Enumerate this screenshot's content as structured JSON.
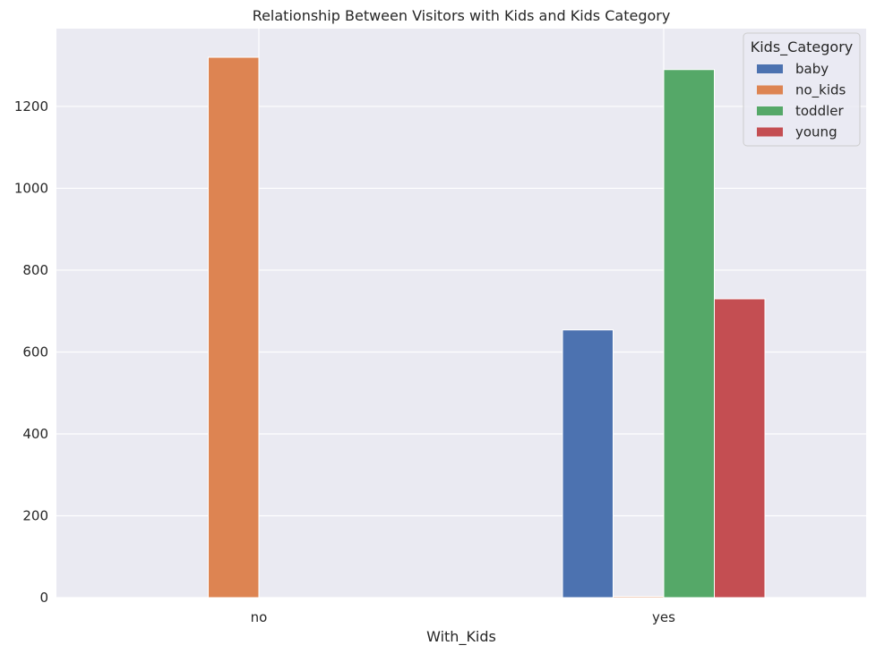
{
  "chart_data": {
    "type": "bar",
    "title": "Relationship Between Visitors with Kids and Kids Category",
    "xlabel": "With_Kids",
    "ylabel": "",
    "categories": [
      "no",
      "yes"
    ],
    "ylim": [
      0,
      1390
    ],
    "yticks": [
      0,
      200,
      400,
      600,
      800,
      1000,
      1200
    ],
    "grid": true,
    "legend": {
      "title": "Kids_Category",
      "placement": "top-right"
    },
    "series": [
      {
        "name": "baby",
        "color": "#4c72b0",
        "values": [
          0,
          654
        ]
      },
      {
        "name": "no_kids",
        "color": "#dd8452",
        "values": [
          1320,
          3
        ]
      },
      {
        "name": "toddler",
        "color": "#55a868",
        "values": [
          0,
          1290
        ]
      },
      {
        "name": "young",
        "color": "#c44e52",
        "values": [
          0,
          730
        ]
      }
    ]
  }
}
